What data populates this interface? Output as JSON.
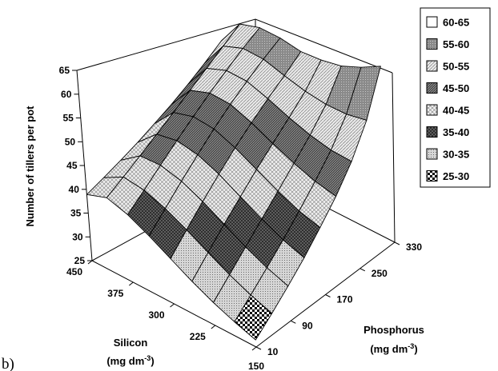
{
  "panel_label": "b)",
  "chart_data": {
    "type": "surface",
    "title": "",
    "zlabel": "Number of tillers per pot",
    "xlabel": "Silicon",
    "xunit": "(mg dm",
    "xunit_sup": "-3",
    "xunit_end": ")",
    "ylabel": "Phosphorus",
    "yunit": "(mg dm",
    "yunit_sup": "-3",
    "yunit_end": ")",
    "zlim": [
      25,
      65
    ],
    "z_ticks": [
      "25",
      "30",
      "35",
      "40",
      "45",
      "50",
      "55",
      "60",
      "65"
    ],
    "silicon_ticks": [
      "450",
      "375",
      "300",
      "225",
      "150"
    ],
    "phosphorus_ticks": [
      "10",
      "90",
      "170",
      "250",
      "330"
    ],
    "silicon_values": [
      450,
      412.5,
      375,
      337.5,
      300,
      262.5,
      225,
      187.5,
      150
    ],
    "phosphorus_values": [
      10,
      50,
      90,
      130,
      170,
      210,
      250,
      290,
      330
    ],
    "z": [
      [
        38.9,
        39.7,
        40.6,
        41.6,
        42.8,
        44.1,
        45.6,
        47.3,
        49.2
      ],
      [
        40.5,
        42.1,
        43.8,
        45.6,
        47.4,
        49.3,
        51.2,
        53.1,
        55.0
      ],
      [
        39.2,
        41.6,
        44.1,
        46.5,
        48.8,
        51.0,
        53.0,
        54.9,
        56.5
      ],
      [
        37.0,
        40.0,
        43.0,
        45.8,
        48.5,
        50.9,
        53.0,
        54.9,
        56.6
      ],
      [
        34.5,
        37.8,
        41.0,
        44.0,
        46.8,
        49.3,
        51.6,
        53.7,
        56.0
      ],
      [
        32.0,
        35.3,
        38.5,
        41.5,
        44.5,
        47.2,
        49.9,
        52.7,
        56.5
      ],
      [
        29.8,
        32.9,
        36.0,
        39.1,
        42.2,
        45.3,
        48.5,
        52.2,
        57.5
      ],
      [
        28.0,
        30.9,
        33.9,
        37.0,
        40.3,
        43.8,
        47.6,
        52.4,
        59.5
      ],
      [
        26.5,
        29.3,
        32.3,
        35.5,
        39.1,
        42.9,
        47.5,
        53.4,
        62.0
      ]
    ],
    "legend_position": "right",
    "legend": [
      {
        "label": "60-65",
        "pattern": "blank"
      },
      {
        "label": "55-60",
        "pattern": "darkgray"
      },
      {
        "label": "50-55",
        "pattern": "lightdiag"
      },
      {
        "label": "45-50",
        "pattern": "darkhatch"
      },
      {
        "label": "40-45",
        "pattern": "crosshatch"
      },
      {
        "label": "35-40",
        "pattern": "darkcross"
      },
      {
        "label": "30-35",
        "pattern": "dots"
      },
      {
        "label": "25-30",
        "pattern": "checker"
      }
    ]
  }
}
